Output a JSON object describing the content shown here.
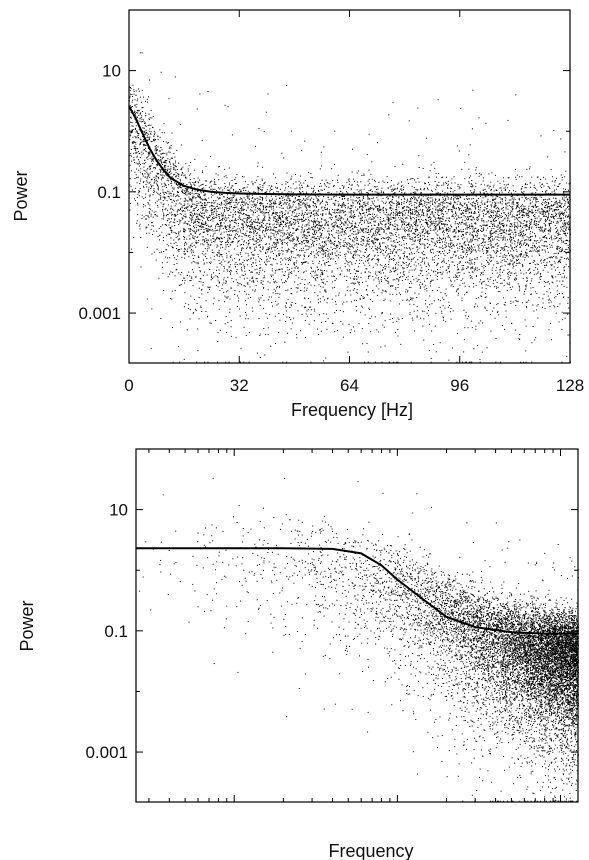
{
  "chart_data": [
    {
      "type": "scatter",
      "title": "",
      "xlabel": "Frequency [Hz]",
      "ylabel": "Power",
      "x_scale": "linear",
      "y_scale": "log",
      "xlim": [
        0,
        128
      ],
      "ylim": [
        0.00015,
        100
      ],
      "x_ticks": [
        0,
        32,
        64,
        96,
        128
      ],
      "x_tick_labels": [
        "0",
        "32",
        "64",
        "96",
        "128"
      ],
      "y_ticks": [
        10,
        0.1,
        0.001
      ],
      "y_tick_labels": [
        "10",
        "0.1",
        "0.001"
      ],
      "grid": false,
      "legend": "none",
      "series": [
        {
          "kind": "scatter",
          "description_values": "periodogram points, dense noise cloud spanning roughly 0.0002 to 3 with median near 0.06",
          "point_color": "#000000"
        },
        {
          "kind": "line",
          "x": [
            0,
            2,
            4,
            6,
            8,
            10,
            12,
            16,
            20,
            24,
            28,
            32,
            40,
            48,
            64,
            96,
            128
          ],
          "y": [
            2.6,
            1.6,
            0.9,
            0.52,
            0.33,
            0.23,
            0.17,
            0.125,
            0.108,
            0.1,
            0.096,
            0.094,
            0.092,
            0.091,
            0.09,
            0.09,
            0.09
          ],
          "line_color": "#000000"
        }
      ]
    },
    {
      "type": "scatter",
      "title": "",
      "xlabel": "Frequency",
      "ylabel": "Power",
      "x_scale": "log",
      "y_scale": "log",
      "xlim": [
        0.25,
        128
      ],
      "ylim": [
        0.00015,
        100
      ],
      "x_ticks": [
        1,
        10,
        100
      ],
      "x_tick_labels": [
        "",
        "",
        ""
      ],
      "y_ticks": [
        10,
        0.1,
        0.001
      ],
      "y_tick_labels": [
        "10",
        "0.1",
        "0.001"
      ],
      "grid": false,
      "legend": "none",
      "series": [
        {
          "kind": "scatter",
          "description_values": "periodogram points, sparse at low frequency and dense at high frequency",
          "point_color": "#000000"
        },
        {
          "kind": "line",
          "x": [
            0.25,
            1,
            2,
            4,
            6,
            8,
            10,
            14,
            20,
            30,
            50,
            80,
            128
          ],
          "y": [
            2.3,
            2.3,
            2.3,
            2.25,
            1.9,
            1.2,
            0.7,
            0.35,
            0.17,
            0.115,
            0.095,
            0.09,
            0.09
          ],
          "line_color": "#000000"
        }
      ]
    }
  ]
}
